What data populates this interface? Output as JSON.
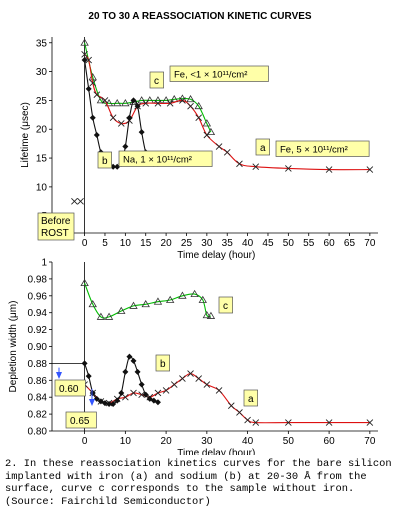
{
  "caption": "2. In these reassociation kinetics curves for the bare silicon implanted with iron (a) and sodium (b) at 20-30 Å from the surface, curve c corresponds to the sample without iron. (Source: Fairchild Semiconductor)",
  "chart_data": [
    {
      "type": "line",
      "title": "20 TO 30 A REASSOCIATION KINETIC CURVES",
      "xlabel": "Time delay (hour)",
      "ylabel": "Lifetime (μsec)",
      "xlim": [
        -8,
        72
      ],
      "ylim": [
        2,
        36
      ],
      "xticks": [
        0,
        5,
        10,
        15,
        20,
        25,
        30,
        35,
        40,
        45,
        50,
        55,
        60,
        65,
        70
      ],
      "yticks": [
        5,
        10,
        15,
        20,
        25,
        30,
        35
      ],
      "before_label": "Before ROST",
      "before_points": [
        {
          "x": -7,
          "y": 3,
          "marker": "dot"
        },
        {
          "x": -5.5,
          "y": 3,
          "marker": "dot"
        },
        {
          "x": -2.5,
          "y": 7.5,
          "marker": "x"
        },
        {
          "x": -1,
          "y": 7.5,
          "marker": "x"
        }
      ],
      "series": [
        {
          "id": "c",
          "color": "#00bb00",
          "marker": "triangle",
          "points": [
            [
              0,
              35
            ],
            [
              2,
              29
            ],
            [
              4,
              25
            ],
            [
              6,
              24.5
            ],
            [
              8,
              24.5
            ],
            [
              10,
              24.5
            ],
            [
              12,
              24.7
            ],
            [
              14,
              25
            ],
            [
              16,
              25
            ],
            [
              18,
              25
            ],
            [
              20,
              25
            ],
            [
              22,
              25.2
            ],
            [
              24,
              25.3
            ],
            [
              26,
              25.2
            ],
            [
              28,
              24
            ],
            [
              30,
              21
            ],
            [
              31,
              19.5
            ]
          ]
        },
        {
          "id": "a",
          "color": "#dd1111",
          "marker": "x",
          "points": [
            [
              0,
              33
            ],
            [
              1,
              32
            ],
            [
              2,
              28
            ],
            [
              3,
              26
            ],
            [
              5,
              25
            ],
            [
              7,
              22
            ],
            [
              9,
              21
            ],
            [
              11,
              21.5
            ],
            [
              13,
              24
            ],
            [
              15,
              24.5
            ],
            [
              18,
              24.5
            ],
            [
              21,
              24.5
            ],
            [
              24,
              25
            ],
            [
              26,
              24
            ],
            [
              28,
              22
            ],
            [
              30,
              19
            ],
            [
              33,
              17
            ],
            [
              35,
              16
            ],
            [
              38,
              14
            ],
            [
              42,
              13.5
            ],
            [
              50,
              13.2
            ],
            [
              60,
              13
            ],
            [
              70,
              13
            ]
          ]
        },
        {
          "id": "b",
          "color": "#111111",
          "marker": "diamond",
          "points": [
            [
              0,
              32
            ],
            [
              1,
              27
            ],
            [
              2,
              22
            ],
            [
              3,
              19
            ],
            [
              4,
              16
            ],
            [
              5,
              15
            ],
            [
              6,
              14
            ],
            [
              7,
              13.5
            ],
            [
              8,
              13.5
            ],
            [
              9,
              14
            ],
            [
              10,
              17
            ],
            [
              11,
              22
            ],
            [
              12,
              25
            ],
            [
              13,
              24
            ],
            [
              14,
              19.5
            ],
            [
              15,
              16
            ],
            [
              16,
              14.5
            ],
            [
              17,
              14
            ],
            [
              18,
              14
            ]
          ]
        }
      ],
      "labels": [
        {
          "for": "c",
          "letter": "c",
          "text": "Fe, <1 × 10¹¹/cm²"
        },
        {
          "for": "a",
          "letter": "a",
          "text": "Fe, 5 × 10¹¹/cm²"
        },
        {
          "for": "b",
          "letter": "b",
          "text": "Na, 1 × 10¹¹/cm²"
        }
      ]
    },
    {
      "type": "line",
      "xlabel": "Time delay (hour)",
      "ylabel": "Depletion width (μm)",
      "xlim": [
        -8,
        72
      ],
      "ylim": [
        0.8,
        1.0
      ],
      "xticks": [
        0,
        10,
        20,
        30,
        40,
        50,
        60,
        70
      ],
      "yticks": [
        0.8,
        0.82,
        0.84,
        0.86,
        0.88,
        0.9,
        0.92,
        0.94,
        0.96,
        0.98,
        1
      ],
      "side_labels": [
        "0.60",
        "0.65"
      ],
      "series": [
        {
          "id": "c",
          "color": "#00bb00",
          "marker": "triangle",
          "points": [
            [
              0,
              0.975
            ],
            [
              2,
              0.95
            ],
            [
              4,
              0.935
            ],
            [
              6,
              0.935
            ],
            [
              9,
              0.942
            ],
            [
              12,
              0.948
            ],
            [
              15,
              0.95
            ],
            [
              18,
              0.953
            ],
            [
              21,
              0.955
            ],
            [
              24,
              0.96
            ],
            [
              27,
              0.962
            ],
            [
              29,
              0.955
            ],
            [
              30,
              0.937
            ],
            [
              31,
              0.936
            ]
          ]
        },
        {
          "id": "a",
          "color": "#dd1111",
          "marker": "x",
          "points": [
            [
              0,
              0.855
            ],
            [
              2,
              0.845
            ],
            [
              4,
              0.835
            ],
            [
              6,
              0.833
            ],
            [
              8,
              0.838
            ],
            [
              10,
              0.84
            ],
            [
              12,
              0.845
            ],
            [
              14,
              0.843
            ],
            [
              16,
              0.84
            ],
            [
              18,
              0.845
            ],
            [
              20,
              0.848
            ],
            [
              22,
              0.855
            ],
            [
              24,
              0.862
            ],
            [
              26,
              0.868
            ],
            [
              28,
              0.862
            ],
            [
              30,
              0.855
            ],
            [
              33,
              0.848
            ],
            [
              36,
              0.83
            ],
            [
              38,
              0.822
            ],
            [
              40,
              0.813
            ],
            [
              42,
              0.81
            ],
            [
              50,
              0.81
            ],
            [
              60,
              0.81
            ],
            [
              70,
              0.81
            ]
          ]
        },
        {
          "id": "b",
          "color": "#111111",
          "marker": "diamond",
          "points": [
            [
              0,
              0.88
            ],
            [
              1,
              0.865
            ],
            [
              2,
              0.845
            ],
            [
              3,
              0.838
            ],
            [
              4,
              0.835
            ],
            [
              5,
              0.833
            ],
            [
              6,
              0.832
            ],
            [
              7,
              0.832
            ],
            [
              8,
              0.836
            ],
            [
              9,
              0.845
            ],
            [
              10,
              0.87
            ],
            [
              11,
              0.888
            ],
            [
              12,
              0.883
            ],
            [
              13,
              0.87
            ],
            [
              14,
              0.855
            ],
            [
              15,
              0.843
            ],
            [
              16,
              0.838
            ],
            [
              17,
              0.836
            ],
            [
              18,
              0.834
            ]
          ]
        }
      ],
      "labels": [
        {
          "for": "c",
          "letter": "c"
        },
        {
          "for": "b",
          "letter": "b"
        },
        {
          "for": "a",
          "letter": "a"
        }
      ]
    }
  ]
}
